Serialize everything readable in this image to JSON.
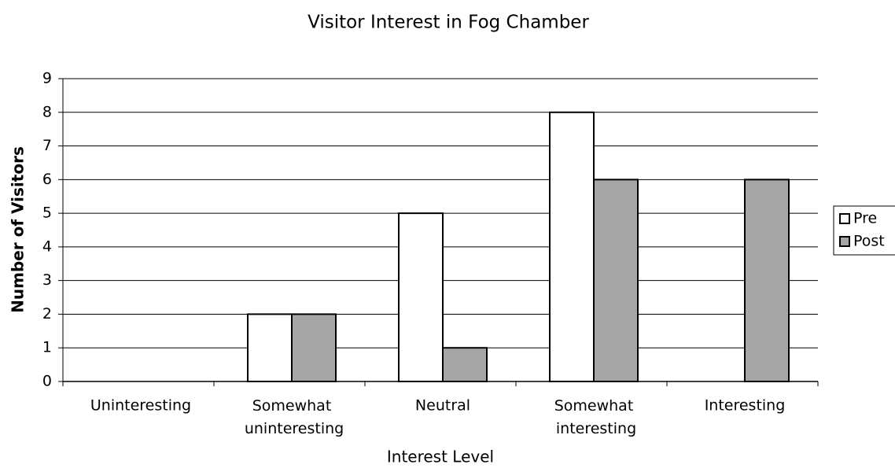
{
  "chart_data": {
    "type": "bar",
    "title": "Visitor Interest in Fog Chamber",
    "x_label": "Interest Level",
    "y_label": "Number of Visitors",
    "categories": [
      "Uninteresting",
      "Somewhat uninteresting",
      "Neutral",
      "Somewhat interesting",
      "Interesting"
    ],
    "series": [
      {
        "name": "Pre",
        "color": "#ffffff",
        "values": [
          0,
          2,
          5,
          8,
          0
        ]
      },
      {
        "name": "Post",
        "color": "#a6a6a6",
        "values": [
          0,
          2,
          1,
          6,
          6
        ]
      }
    ],
    "ylim": [
      0,
      9
    ],
    "yticks": [
      0,
      1,
      2,
      3,
      4,
      5,
      6,
      7,
      8,
      9
    ],
    "grid": true,
    "legend": "right"
  }
}
